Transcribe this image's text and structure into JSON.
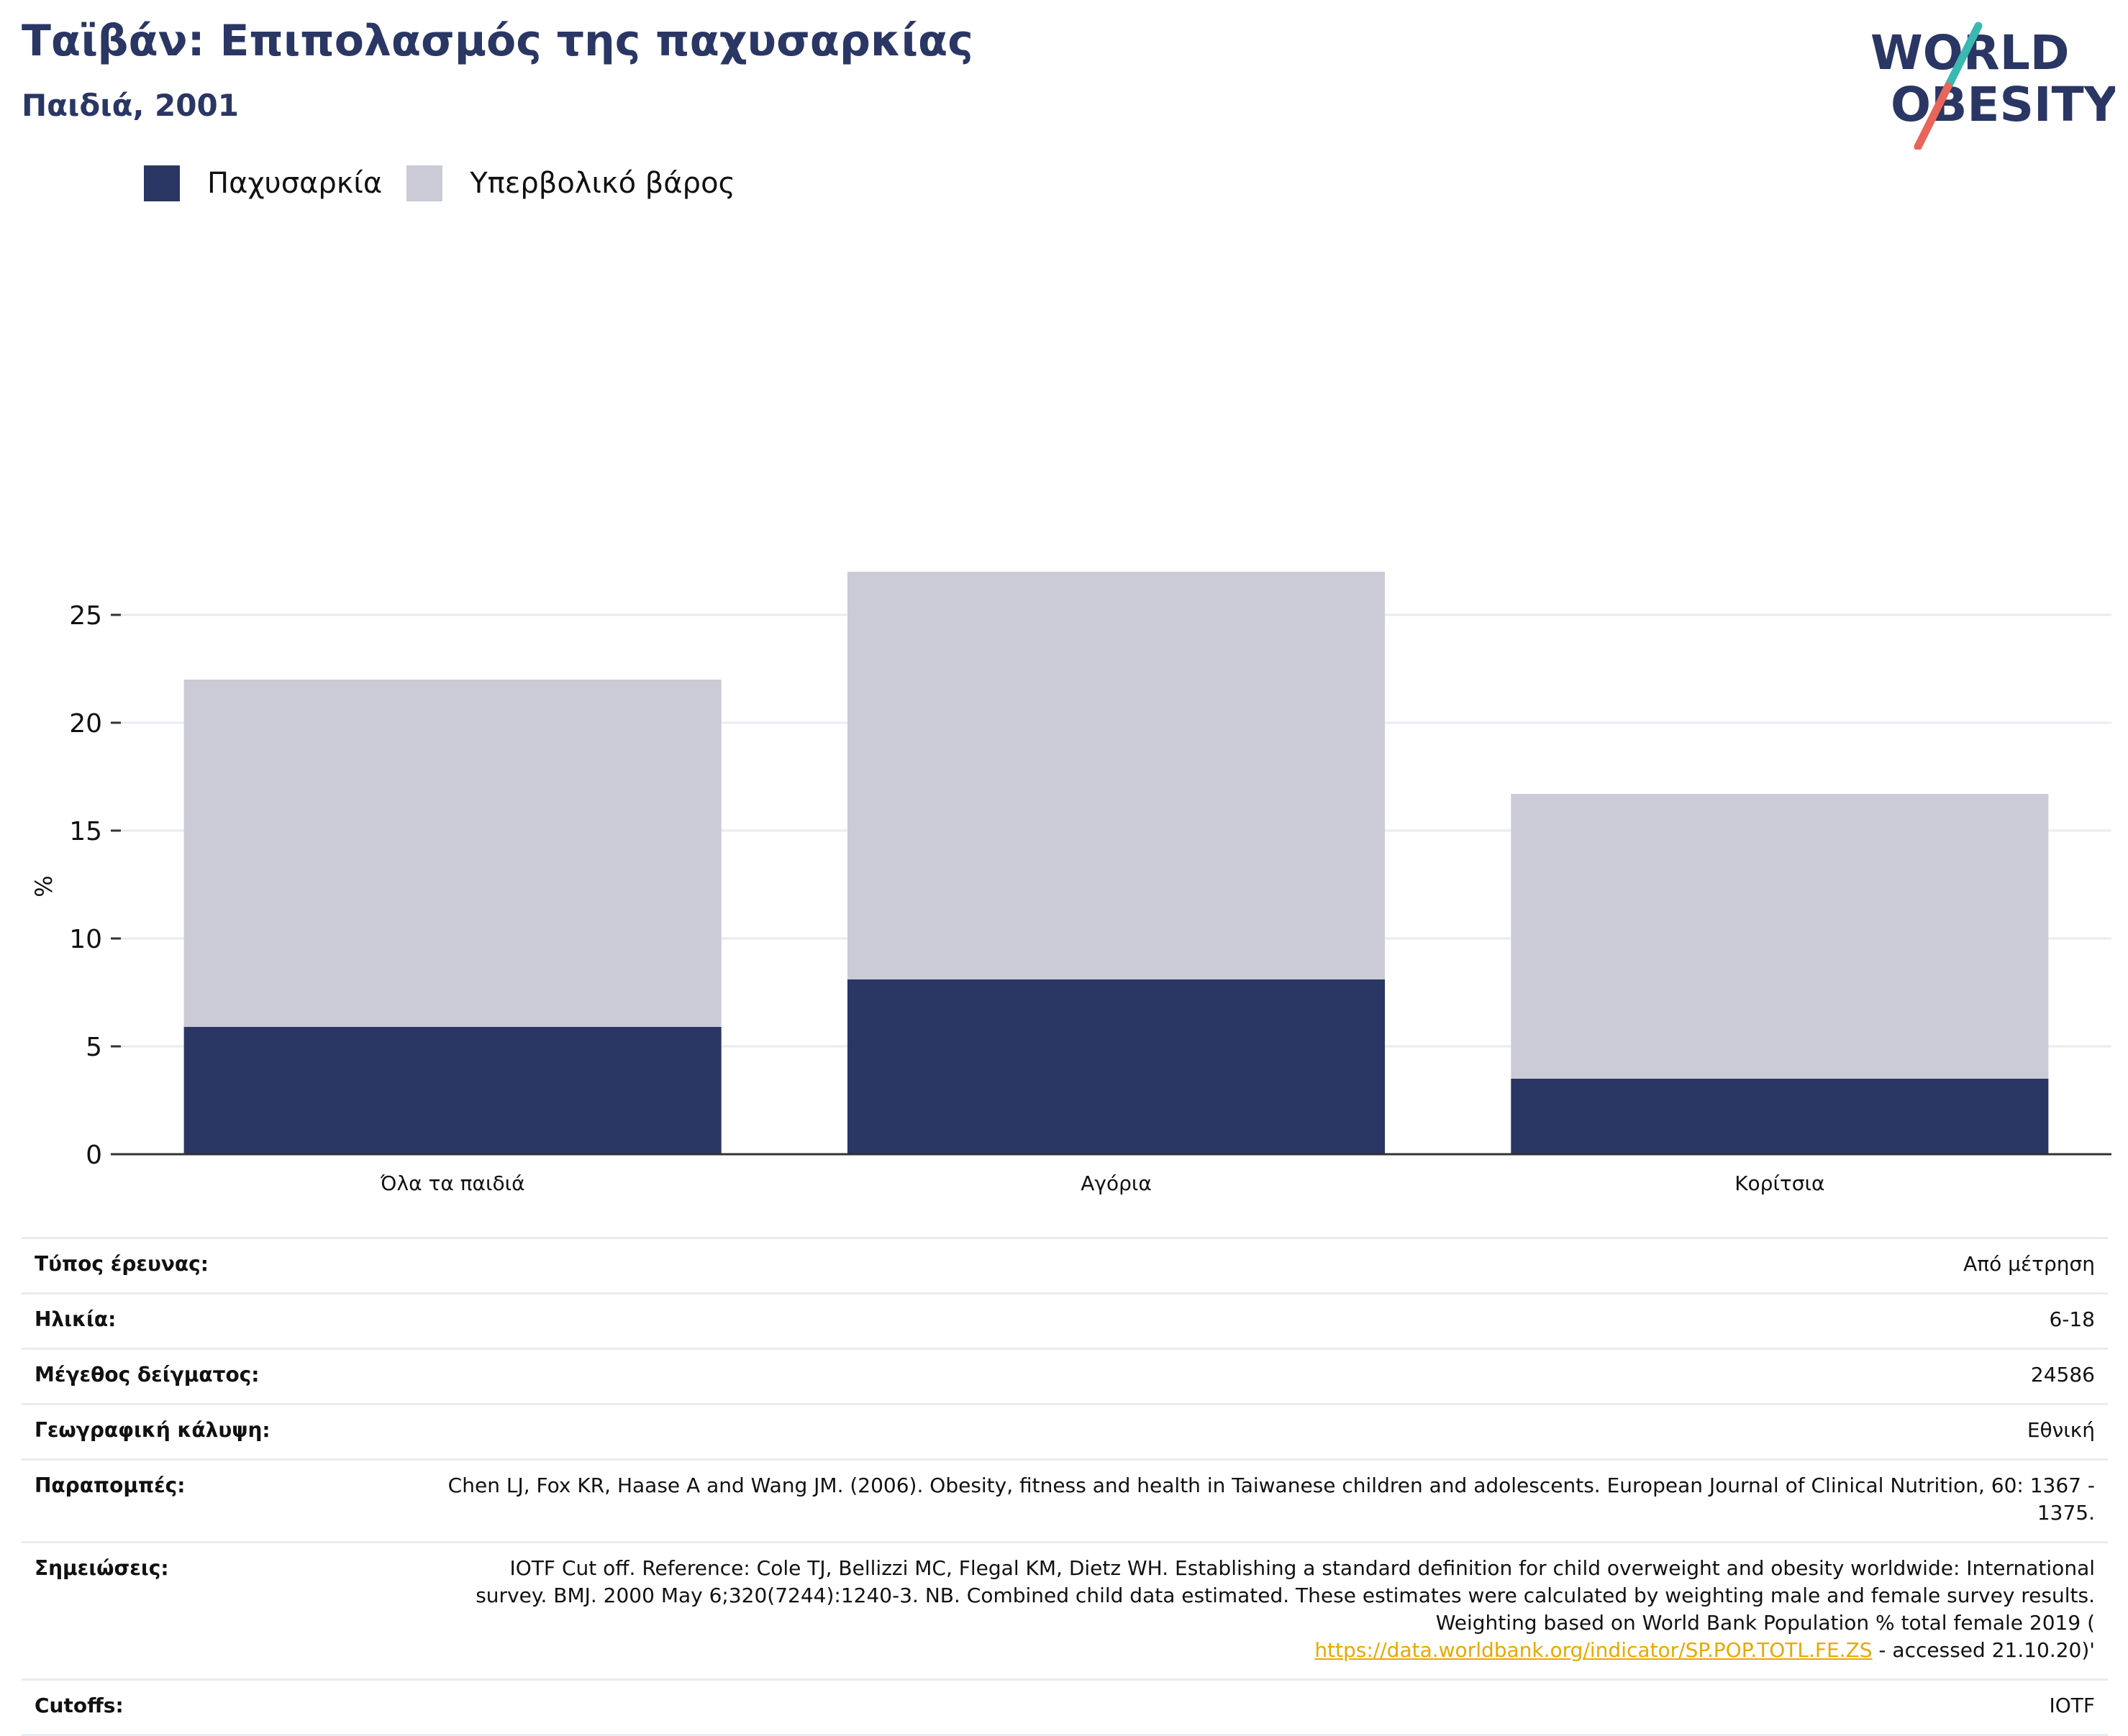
{
  "header": {
    "title": "Ταϊβάν: Επιπολασμός της παχυσαρκίας",
    "subtitle": "Παιδιά, 2001"
  },
  "logo": {
    "line1": "WORLD",
    "line2": "OBESITY",
    "accent_teal": "#3bb8b0",
    "accent_coral": "#e8655a",
    "color": "#2a3663"
  },
  "colors": {
    "obesity": "#2a3663",
    "overweight": "#cacbd7",
    "grid": "#e9ebf2",
    "axis": "#333333"
  },
  "chart_data": {
    "type": "bar",
    "stacked": true,
    "categories": [
      "Όλα τα παιδιά",
      "Αγόρια",
      "Κορίτσια"
    ],
    "series": [
      {
        "name": "Παχυσαρκία",
        "values": [
          5.9,
          8.1,
          3.5
        ]
      },
      {
        "name": "Υπερβολικό βάρος",
        "values": [
          16.1,
          18.9,
          13.2
        ]
      }
    ],
    "ylabel": "%",
    "ylim": [
      0,
      27.5
    ],
    "yticks": [
      0,
      5,
      10,
      15,
      20,
      25
    ],
    "grid": true,
    "legend": "top-left"
  },
  "info": [
    {
      "key": "Τύπος έρευνας:",
      "value": "Από μέτρηση"
    },
    {
      "key": "Ηλικία:",
      "value": "6-18"
    },
    {
      "key": "Μέγεθος δείγματος:",
      "value": "24586"
    },
    {
      "key": "Γεωγραφική κάλυψη:",
      "value": "Εθνική"
    },
    {
      "key": "Παραπομπές:",
      "value": "Chen LJ, Fox KR, Haase A and Wang JM. (2006). Obesity, fitness and health in Taiwanese children and adolescents. European Journal of Clinical Nutrition, 60: 1367 - 1375."
    },
    {
      "key": "Σημειώσεις:",
      "value": "IOTF Cut off. Reference: Cole TJ, Bellizzi MC, Flegal KM, Dietz WH. Establishing a standard definition for child overweight and obesity worldwide: International survey. BMJ. 2000 May 6;320(7244):1240-3. NB. Combined child data estimated. These estimates were calculated by weighting male and female survey results. Weighting based on World Bank Population % total female 2019 (",
      "link": "https://data.worldbank.org/indicator/SP.POP.TOTL.FE.ZS",
      "suffix": " - accessed 21.10.20)'"
    },
    {
      "key": "Cutoffs:",
      "value": "IOTF"
    }
  ]
}
